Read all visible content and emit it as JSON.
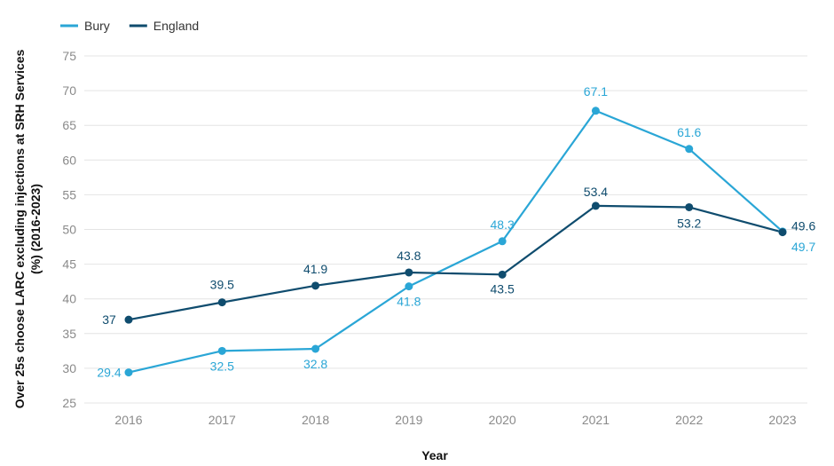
{
  "chart_data": {
    "type": "line",
    "title": "",
    "xlabel": "Year",
    "ylabel": "Over 25s choose LARC excluding injections at SRH Services (%) (2016-2023)",
    "categories": [
      "2016",
      "2017",
      "2018",
      "2019",
      "2020",
      "2021",
      "2022",
      "2023"
    ],
    "yticks": [
      "25",
      "30",
      "35",
      "40",
      "45",
      "50",
      "55",
      "60",
      "65",
      "70",
      "75"
    ],
    "ylim": [
      25,
      75
    ],
    "grid": true,
    "legend_position": "top-left",
    "series": [
      {
        "name": "Bury",
        "color": "#2aa6d6",
        "values": [
          29.4,
          32.5,
          32.8,
          41.8,
          48.3,
          67.1,
          61.6,
          49.7
        ],
        "labels": [
          "29.4",
          "32.5",
          "32.8",
          "41.8",
          "48.3",
          "67.1",
          "61.6",
          "49.7"
        ]
      },
      {
        "name": "England",
        "color": "#0f4c6e",
        "values": [
          37,
          39.5,
          41.9,
          43.8,
          43.5,
          53.4,
          53.2,
          49.6
        ],
        "labels": [
          "37",
          "39.5",
          "41.9",
          "43.8",
          "43.5",
          "53.4",
          "53.2",
          "49.6"
        ]
      }
    ]
  }
}
